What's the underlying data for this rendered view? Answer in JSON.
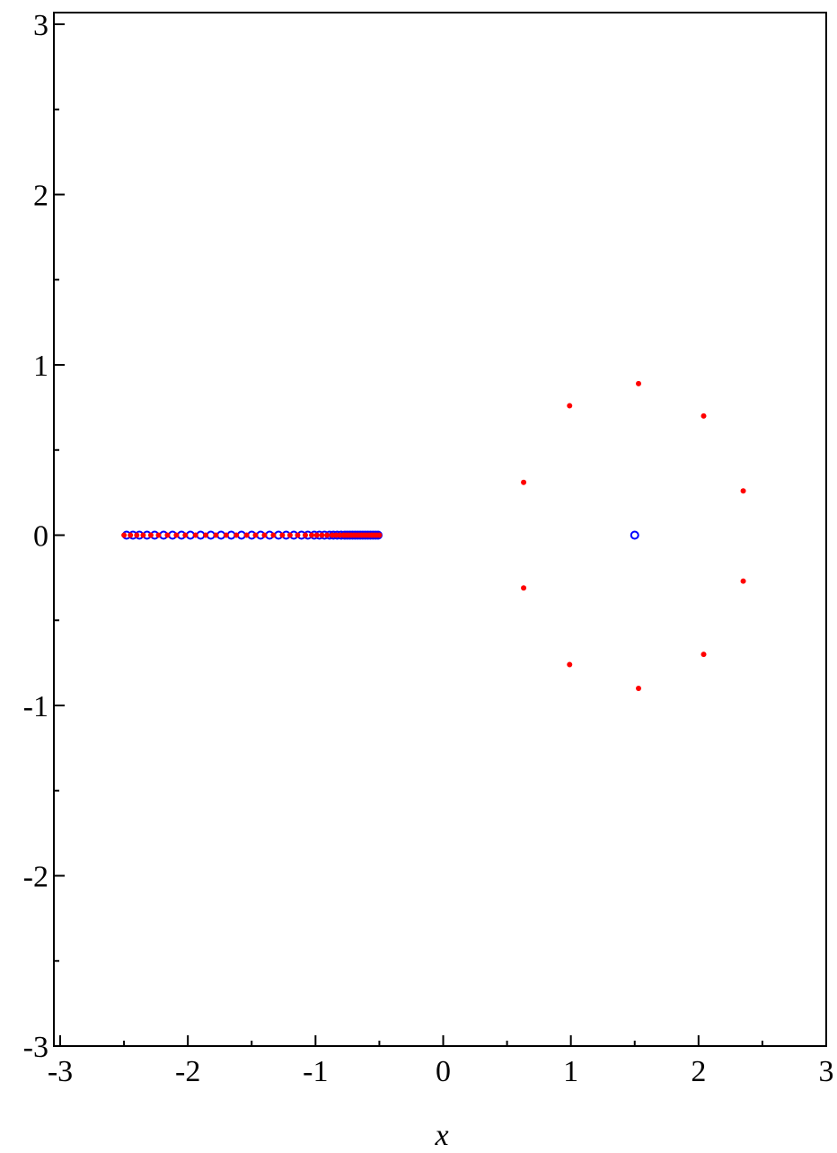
{
  "chart_data": {
    "type": "scatter",
    "xlabel": "x",
    "ylabel": "",
    "xlim": [
      -3,
      3
    ],
    "ylim": [
      -3,
      3
    ],
    "grid": false,
    "x_ticks": [
      {
        "value": -3,
        "label": "-3"
      },
      {
        "value": -2,
        "label": "-2"
      },
      {
        "value": -1,
        "label": "-1"
      },
      {
        "value": 0,
        "label": "0"
      },
      {
        "value": 1,
        "label": "1"
      },
      {
        "value": 2,
        "label": "2"
      },
      {
        "value": 3,
        "label": "3"
      }
    ],
    "y_ticks": [
      {
        "value": -3,
        "label": "-3"
      },
      {
        "value": -2,
        "label": "-2"
      },
      {
        "value": -1,
        "label": "-1"
      },
      {
        "value": 0,
        "label": "0"
      },
      {
        "value": 1,
        "label": "1"
      },
      {
        "value": 2,
        "label": "2"
      },
      {
        "value": 3,
        "label": "3"
      }
    ],
    "series": [
      {
        "color": "#0000ff",
        "marker": "circle-open",
        "points": [
          [
            -2.48,
            0
          ],
          [
            -2.43,
            0
          ],
          [
            -2.38,
            0
          ],
          [
            -2.32,
            0
          ],
          [
            -2.26,
            0
          ],
          [
            -2.19,
            0
          ],
          [
            -2.12,
            0
          ],
          [
            -2.05,
            0
          ],
          [
            -1.98,
            0
          ],
          [
            -1.9,
            0
          ],
          [
            -1.82,
            0
          ],
          [
            -1.74,
            0
          ],
          [
            -1.66,
            0
          ],
          [
            -1.58,
            0
          ],
          [
            -1.5,
            0
          ],
          [
            -1.43,
            0
          ],
          [
            -1.36,
            0
          ],
          [
            -1.29,
            0
          ],
          [
            -1.23,
            0
          ],
          [
            -1.17,
            0
          ],
          [
            -1.11,
            0
          ],
          [
            -1.06,
            0
          ],
          [
            -1.01,
            0
          ],
          [
            -0.97,
            0
          ],
          [
            -0.93,
            0
          ],
          [
            -0.89,
            0
          ],
          [
            -0.86,
            0
          ],
          [
            -0.83,
            0
          ],
          [
            -0.8,
            0
          ],
          [
            -0.77,
            0
          ],
          [
            -0.75,
            0
          ],
          [
            -0.73,
            0
          ],
          [
            -0.71,
            0
          ],
          [
            -0.69,
            0
          ],
          [
            -0.67,
            0
          ],
          [
            -0.65,
            0
          ],
          [
            -0.63,
            0
          ],
          [
            -0.61,
            0
          ],
          [
            -0.59,
            0
          ],
          [
            -0.57,
            0
          ],
          [
            -0.55,
            0
          ],
          [
            -0.53,
            0
          ],
          [
            -0.51,
            0
          ],
          [
            1.5,
            0
          ]
        ]
      },
      {
        "color": "#ff0000",
        "marker": "dot",
        "points": [
          [
            -2.5,
            0
          ],
          [
            -2.45,
            0
          ],
          [
            -2.4,
            0
          ],
          [
            -2.35,
            0
          ],
          [
            -2.29,
            0
          ],
          [
            -2.23,
            0
          ],
          [
            -2.16,
            0
          ],
          [
            -2.09,
            0
          ],
          [
            -2.02,
            0
          ],
          [
            -1.94,
            0
          ],
          [
            -1.86,
            0
          ],
          [
            -1.78,
            0
          ],
          [
            -1.7,
            0
          ],
          [
            -1.62,
            0
          ],
          [
            -1.54,
            0
          ],
          [
            -1.47,
            0
          ],
          [
            -1.4,
            0
          ],
          [
            -1.33,
            0
          ],
          [
            -1.26,
            0
          ],
          [
            -1.2,
            0
          ],
          [
            -1.14,
            0
          ],
          [
            -1.08,
            0
          ],
          [
            -1.03,
            0
          ],
          [
            -0.99,
            0
          ],
          [
            -0.95,
            0
          ],
          [
            -0.91,
            0
          ],
          [
            -0.87,
            0
          ],
          [
            -0.84,
            0
          ],
          [
            -0.81,
            0
          ],
          [
            -0.78,
            0
          ],
          [
            -0.76,
            0
          ],
          [
            -0.74,
            0
          ],
          [
            -0.72,
            0
          ],
          [
            -0.7,
            0
          ],
          [
            -0.68,
            0
          ],
          [
            -0.66,
            0
          ],
          [
            -0.64,
            0
          ],
          [
            -0.62,
            0
          ],
          [
            -0.6,
            0
          ],
          [
            -0.58,
            0
          ],
          [
            -0.56,
            0
          ],
          [
            -0.54,
            0
          ],
          [
            -0.52,
            0
          ],
          [
            -0.5,
            0
          ],
          [
            1.53,
            0.89
          ],
          [
            0.99,
            0.76
          ],
          [
            2.04,
            0.7
          ],
          [
            0.63,
            0.31
          ],
          [
            2.35,
            0.26
          ],
          [
            0.63,
            -0.31
          ],
          [
            2.35,
            -0.27
          ],
          [
            0.99,
            -0.76
          ],
          [
            2.04,
            -0.7
          ],
          [
            1.53,
            -0.9
          ]
        ]
      }
    ]
  }
}
